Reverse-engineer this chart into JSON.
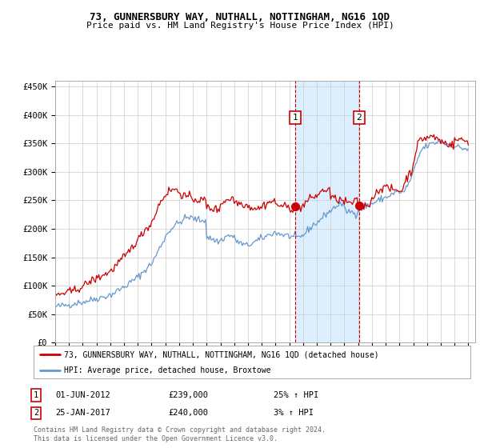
{
  "title": "73, GUNNERSBURY WAY, NUTHALL, NOTTINGHAM, NG16 1QD",
  "subtitle": "Price paid vs. HM Land Registry's House Price Index (HPI)",
  "ylim": [
    0,
    460000
  ],
  "yticks": [
    0,
    50000,
    100000,
    150000,
    200000,
    250000,
    300000,
    350000,
    400000,
    450000
  ],
  "xlim_start": 1995.0,
  "xlim_end": 2025.5,
  "sale1_date": 2012.42,
  "sale1_price": 239000,
  "sale2_date": 2017.07,
  "sale2_price": 240000,
  "legend_line1": "73, GUNNERSBURY WAY, NUTHALL, NOTTINGHAM, NG16 1QD (detached house)",
  "legend_line2": "HPI: Average price, detached house, Broxtowe",
  "footer": "Contains HM Land Registry data © Crown copyright and database right 2024.\nThis data is licensed under the Open Government Licence v3.0.",
  "red_color": "#cc0000",
  "blue_color": "#6699cc",
  "shade_color": "#ddeeff",
  "grid_color": "#cccccc",
  "background_color": "#ffffff",
  "hpi_years": [
    1995.0,
    1995.08,
    1995.17,
    1995.25,
    1995.33,
    1995.42,
    1995.5,
    1995.58,
    1995.67,
    1995.75,
    1995.83,
    1995.92,
    1996.0,
    1996.08,
    1996.17,
    1996.25,
    1996.33,
    1996.42,
    1996.5,
    1996.58,
    1996.67,
    1996.75,
    1996.83,
    1996.92,
    1997.0,
    1997.08,
    1997.17,
    1997.25,
    1997.33,
    1997.42,
    1997.5,
    1997.58,
    1997.67,
    1997.75,
    1997.83,
    1997.92,
    1998.0,
    1998.08,
    1998.17,
    1998.25,
    1998.33,
    1998.42,
    1998.5,
    1998.58,
    1998.67,
    1998.75,
    1998.83,
    1998.92,
    1999.0,
    1999.08,
    1999.17,
    1999.25,
    1999.33,
    1999.42,
    1999.5,
    1999.58,
    1999.67,
    1999.75,
    1999.83,
    1999.92,
    2000.0,
    2000.08,
    2000.17,
    2000.25,
    2000.33,
    2000.42,
    2000.5,
    2000.58,
    2000.67,
    2000.75,
    2000.83,
    2000.92,
    2001.0,
    2001.08,
    2001.17,
    2001.25,
    2001.33,
    2001.42,
    2001.5,
    2001.58,
    2001.67,
    2001.75,
    2001.83,
    2001.92,
    2002.0,
    2002.08,
    2002.17,
    2002.25,
    2002.33,
    2002.42,
    2002.5,
    2002.58,
    2002.67,
    2002.75,
    2002.83,
    2002.92,
    2003.0,
    2003.08,
    2003.17,
    2003.25,
    2003.33,
    2003.42,
    2003.5,
    2003.58,
    2003.67,
    2003.75,
    2003.83,
    2003.92,
    2004.0,
    2004.08,
    2004.17,
    2004.25,
    2004.33,
    2004.42,
    2004.5,
    2004.58,
    2004.67,
    2004.75,
    2004.83,
    2004.92,
    2005.0,
    2005.08,
    2005.17,
    2005.25,
    2005.33,
    2005.42,
    2005.5,
    2005.58,
    2005.67,
    2005.75,
    2005.83,
    2005.92,
    2006.0,
    2006.08,
    2006.17,
    2006.25,
    2006.33,
    2006.42,
    2006.5,
    2006.58,
    2006.67,
    2006.75,
    2006.83,
    2006.92,
    2007.0,
    2007.08,
    2007.17,
    2007.25,
    2007.33,
    2007.42,
    2007.5,
    2007.58,
    2007.67,
    2007.75,
    2007.83,
    2007.92,
    2008.0,
    2008.08,
    2008.17,
    2008.25,
    2008.33,
    2008.42,
    2008.5,
    2008.58,
    2008.67,
    2008.75,
    2008.83,
    2008.92,
    2009.0,
    2009.08,
    2009.17,
    2009.25,
    2009.33,
    2009.42,
    2009.5,
    2009.58,
    2009.67,
    2009.75,
    2009.83,
    2009.92,
    2010.0,
    2010.08,
    2010.17,
    2010.25,
    2010.33,
    2010.42,
    2010.5,
    2010.58,
    2010.67,
    2010.75,
    2010.83,
    2010.92,
    2011.0,
    2011.08,
    2011.17,
    2011.25,
    2011.33,
    2011.42,
    2011.5,
    2011.58,
    2011.67,
    2011.75,
    2011.83,
    2011.92,
    2012.0,
    2012.08,
    2012.17,
    2012.25,
    2012.33,
    2012.42,
    2012.5,
    2012.58,
    2012.67,
    2012.75,
    2012.83,
    2012.92,
    2013.0,
    2013.08,
    2013.17,
    2013.25,
    2013.33,
    2013.42,
    2013.5,
    2013.58,
    2013.67,
    2013.75,
    2013.83,
    2013.92,
    2014.0,
    2014.08,
    2014.17,
    2014.25,
    2014.33,
    2014.42,
    2014.5,
    2014.58,
    2014.67,
    2014.75,
    2014.83,
    2014.92,
    2015.0,
    2015.08,
    2015.17,
    2015.25,
    2015.33,
    2015.42,
    2015.5,
    2015.58,
    2015.67,
    2015.75,
    2015.83,
    2015.92,
    2016.0,
    2016.08,
    2016.17,
    2016.25,
    2016.33,
    2016.42,
    2016.5,
    2016.58,
    2016.67,
    2016.75,
    2016.83,
    2016.92,
    2017.0,
    2017.08,
    2017.17,
    2017.25,
    2017.33,
    2017.42,
    2017.5,
    2017.58,
    2017.67,
    2017.75,
    2017.83,
    2017.92,
    2018.0,
    2018.08,
    2018.17,
    2018.25,
    2018.33,
    2018.42,
    2018.5,
    2018.58,
    2018.67,
    2018.75,
    2018.83,
    2018.92,
    2019.0,
    2019.08,
    2019.17,
    2019.25,
    2019.33,
    2019.42,
    2019.5,
    2019.58,
    2019.67,
    2019.75,
    2019.83,
    2019.92,
    2020.0,
    2020.08,
    2020.17,
    2020.25,
    2020.33,
    2020.42,
    2020.5,
    2020.58,
    2020.67,
    2020.75,
    2020.83,
    2020.92,
    2021.0,
    2021.08,
    2021.17,
    2021.25,
    2021.33,
    2021.42,
    2021.5,
    2021.58,
    2021.67,
    2021.75,
    2021.83,
    2021.92,
    2022.0,
    2022.08,
    2022.17,
    2022.25,
    2022.33,
    2022.42,
    2022.5,
    2022.58,
    2022.67,
    2022.75,
    2022.83,
    2022.92,
    2023.0,
    2023.08,
    2023.17,
    2023.25,
    2023.33,
    2023.42,
    2023.5,
    2023.58,
    2023.67,
    2023.75,
    2023.83,
    2023.92,
    2024.0,
    2024.08,
    2024.17,
    2024.25,
    2024.33,
    2024.42,
    2024.5,
    2024.58,
    2024.67,
    2024.75,
    2024.83,
    2024.92,
    2025.0
  ],
  "hpi_vals": [
    63000,
    63500,
    64000,
    64200,
    64500,
    64800,
    65000,
    65300,
    65600,
    65800,
    66000,
    66200,
    66500,
    67000,
    67500,
    68000,
    68500,
    69000,
    69500,
    70000,
    70200,
    70500,
    70800,
    71000,
    71500,
    72000,
    72500,
    73000,
    73500,
    74000,
    74500,
    75000,
    75500,
    76000,
    76500,
    77000,
    77500,
    78000,
    78500,
    79000,
    79500,
    80000,
    80500,
    81000,
    81500,
    82000,
    82500,
    83000,
    84000,
    85000,
    86000,
    87000,
    88000,
    89500,
    91000,
    92500,
    93500,
    94500,
    95500,
    96500,
    97500,
    99000,
    100500,
    102000,
    103500,
    105000,
    106500,
    108000,
    109500,
    111000,
    112500,
    114000,
    115000,
    117000,
    119000,
    121000,
    123000,
    125000,
    127000,
    129000,
    131000,
    133000,
    135000,
    137000,
    139000,
    142000,
    146000,
    150000,
    154000,
    158000,
    162000,
    166000,
    170000,
    174000,
    178000,
    182000,
    186000,
    189000,
    192000,
    195000,
    198000,
    200000,
    202000,
    204000,
    206000,
    208000,
    208500,
    209000,
    210000,
    212000,
    214000,
    215000,
    216000,
    218000,
    219000,
    219500,
    219800,
    220000,
    219500,
    219000,
    218000,
    217500,
    217000,
    216500,
    216000,
    215500,
    215000,
    214500,
    214800,
    215000,
    215500,
    216000,
    186000,
    185000,
    184000,
    183000,
    182500,
    182000,
    181000,
    180000,
    179000,
    178500,
    178000,
    177500,
    180000,
    181000,
    182000,
    183500,
    185000,
    186000,
    187000,
    188500,
    188000,
    187500,
    187000,
    186500,
    183000,
    181000,
    179500,
    178000,
    176500,
    175000,
    174000,
    173000,
    172000,
    171500,
    171000,
    170500,
    171000,
    172000,
    173000,
    174000,
    175000,
    176000,
    177000,
    178000,
    179000,
    180000,
    181000,
    182000,
    183000,
    184000,
    185000,
    186000,
    187000,
    188000,
    189000,
    190000,
    191000,
    192000,
    192500,
    193000,
    193000,
    192500,
    192000,
    191500,
    191000,
    190500,
    190000,
    189500,
    189000,
    188500,
    188000,
    187500,
    187000,
    186500,
    186000,
    185500,
    185000,
    184500,
    184000,
    183500,
    184000,
    185000,
    186000,
    187000,
    189000,
    191000,
    193000,
    195000,
    197000,
    199000,
    201000,
    203000,
    205000,
    207000,
    208000,
    209000,
    210000,
    212000,
    214000,
    216000,
    218000,
    220000,
    222000,
    224000,
    226000,
    228000,
    229000,
    230000,
    231000,
    233000,
    235000,
    237000,
    239000,
    240000,
    241000,
    242000,
    242500,
    243000,
    243500,
    244000,
    233000,
    232000,
    231500,
    231000,
    230500,
    230000,
    229500,
    229000,
    228500,
    228000,
    227500,
    227000,
    233000,
    234000,
    235000,
    236000,
    237000,
    238000,
    239000,
    240000,
    241000,
    242000,
    242500,
    243000,
    244000,
    245000,
    246000,
    247000,
    248000,
    249000,
    250000,
    251000,
    252000,
    253000,
    253500,
    254000,
    255000,
    256000,
    257000,
    258000,
    259000,
    260000,
    261000,
    262000,
    263000,
    264000,
    264500,
    265000,
    265000,
    264000,
    263500,
    263000,
    265000,
    268000,
    272000,
    276000,
    280000,
    284000,
    288000,
    292000,
    298000,
    304000,
    310000,
    316000,
    322000,
    328000,
    333000,
    337000,
    340000,
    342000,
    343000,
    344000,
    345000,
    346000,
    347000,
    348000,
    349000,
    350000,
    350500,
    351000,
    351500,
    352000,
    352500,
    353000,
    352000,
    351000,
    350500,
    350000,
    349500,
    349000,
    348500,
    348000,
    347500,
    347000,
    346500,
    346000,
    345000,
    344500,
    344000,
    343500,
    343000,
    342500,
    342000,
    341500,
    341000,
    340500,
    340000,
    339500,
    339000
  ],
  "prop_years": [
    1995.0,
    1995.08,
    1995.17,
    1995.25,
    1995.33,
    1995.42,
    1995.5,
    1995.58,
    1995.67,
    1995.75,
    1995.83,
    1995.92,
    1996.0,
    1996.08,
    1996.17,
    1996.25,
    1996.33,
    1996.42,
    1996.5,
    1996.58,
    1996.67,
    1996.75,
    1996.83,
    1996.92,
    1997.0,
    1997.08,
    1997.17,
    1997.25,
    1997.33,
    1997.42,
    1997.5,
    1997.58,
    1997.67,
    1997.75,
    1997.83,
    1997.92,
    1998.0,
    1998.08,
    1998.17,
    1998.25,
    1998.33,
    1998.42,
    1998.5,
    1998.58,
    1998.67,
    1998.75,
    1998.83,
    1998.92,
    1999.0,
    1999.08,
    1999.17,
    1999.25,
    1999.33,
    1999.42,
    1999.5,
    1999.58,
    1999.67,
    1999.75,
    1999.83,
    1999.92,
    2000.0,
    2000.08,
    2000.17,
    2000.25,
    2000.33,
    2000.42,
    2000.5,
    2000.58,
    2000.67,
    2000.75,
    2000.83,
    2000.92,
    2001.0,
    2001.08,
    2001.17,
    2001.25,
    2001.33,
    2001.42,
    2001.5,
    2001.58,
    2001.67,
    2001.75,
    2001.83,
    2001.92,
    2002.0,
    2002.08,
    2002.17,
    2002.25,
    2002.33,
    2002.42,
    2002.5,
    2002.58,
    2002.67,
    2002.75,
    2002.83,
    2002.92,
    2003.0,
    2003.08,
    2003.17,
    2003.25,
    2003.33,
    2003.42,
    2003.5,
    2003.58,
    2003.67,
    2003.75,
    2003.83,
    2003.92,
    2004.0,
    2004.08,
    2004.17,
    2004.25,
    2004.33,
    2004.42,
    2004.5,
    2004.58,
    2004.67,
    2004.75,
    2004.83,
    2004.92,
    2005.0,
    2005.08,
    2005.17,
    2005.25,
    2005.33,
    2005.42,
    2005.5,
    2005.58,
    2005.67,
    2005.75,
    2005.83,
    2005.92,
    2006.0,
    2006.08,
    2006.17,
    2006.25,
    2006.33,
    2006.42,
    2006.5,
    2006.58,
    2006.67,
    2006.75,
    2006.83,
    2006.92,
    2007.0,
    2007.08,
    2007.17,
    2007.25,
    2007.33,
    2007.42,
    2007.5,
    2007.58,
    2007.67,
    2007.75,
    2007.83,
    2007.92,
    2008.0,
    2008.08,
    2008.17,
    2008.25,
    2008.33,
    2008.42,
    2008.5,
    2008.58,
    2008.67,
    2008.75,
    2008.83,
    2008.92,
    2009.0,
    2009.08,
    2009.17,
    2009.25,
    2009.33,
    2009.42,
    2009.5,
    2009.58,
    2009.67,
    2009.75,
    2009.83,
    2009.92,
    2010.0,
    2010.08,
    2010.17,
    2010.25,
    2010.33,
    2010.42,
    2010.5,
    2010.58,
    2010.67,
    2010.75,
    2010.83,
    2010.92,
    2011.0,
    2011.08,
    2011.17,
    2011.25,
    2011.33,
    2011.42,
    2011.5,
    2011.58,
    2011.67,
    2011.75,
    2011.83,
    2011.92,
    2012.0,
    2012.08,
    2012.17,
    2012.25,
    2012.33,
    2012.42,
    2012.5,
    2012.58,
    2012.67,
    2012.75,
    2012.83,
    2012.92,
    2013.0,
    2013.08,
    2013.17,
    2013.25,
    2013.33,
    2013.42,
    2013.5,
    2013.58,
    2013.67,
    2013.75,
    2013.83,
    2013.92,
    2014.0,
    2014.08,
    2014.17,
    2014.25,
    2014.33,
    2014.42,
    2014.5,
    2014.58,
    2014.67,
    2014.75,
    2014.83,
    2014.92,
    2015.0,
    2015.08,
    2015.17,
    2015.25,
    2015.33,
    2015.42,
    2015.5,
    2015.58,
    2015.67,
    2015.75,
    2015.83,
    2015.92,
    2016.0,
    2016.08,
    2016.17,
    2016.25,
    2016.33,
    2016.42,
    2016.5,
    2016.58,
    2016.67,
    2016.75,
    2016.83,
    2016.92,
    2017.0,
    2017.08,
    2017.17,
    2017.25,
    2017.33,
    2017.42,
    2017.5,
    2017.58,
    2017.67,
    2017.75,
    2017.83,
    2017.92,
    2018.0,
    2018.08,
    2018.17,
    2018.25,
    2018.33,
    2018.42,
    2018.5,
    2018.58,
    2018.67,
    2018.75,
    2018.83,
    2018.92,
    2019.0,
    2019.08,
    2019.17,
    2019.25,
    2019.33,
    2019.42,
    2019.5,
    2019.58,
    2019.67,
    2019.75,
    2019.83,
    2019.92,
    2020.0,
    2020.08,
    2020.17,
    2020.25,
    2020.33,
    2020.42,
    2020.5,
    2020.58,
    2020.67,
    2020.75,
    2020.83,
    2020.92,
    2021.0,
    2021.08,
    2021.17,
    2021.25,
    2021.33,
    2021.42,
    2021.5,
    2021.58,
    2021.67,
    2021.75,
    2021.83,
    2021.92,
    2022.0,
    2022.08,
    2022.17,
    2022.25,
    2022.33,
    2022.42,
    2022.5,
    2022.58,
    2022.67,
    2022.75,
    2022.83,
    2022.92,
    2023.0,
    2023.08,
    2023.17,
    2023.25,
    2023.33,
    2023.42,
    2023.5,
    2023.58,
    2023.67,
    2023.75,
    2023.83,
    2023.92,
    2024.0,
    2024.08,
    2024.17,
    2024.25,
    2024.33,
    2024.42,
    2024.5,
    2024.58,
    2024.67,
    2024.75,
    2024.83,
    2024.92,
    2025.0
  ],
  "prop_vals": [
    83000,
    83500,
    84000,
    84500,
    85000,
    85500,
    86000,
    86500,
    87000,
    87500,
    88000,
    88500,
    89000,
    89500,
    90000,
    90500,
    91000,
    92000,
    93000,
    94000,
    95000,
    96000,
    97000,
    98000,
    99000,
    100000,
    101500,
    103000,
    104500,
    106000,
    107000,
    108000,
    109000,
    110000,
    111000,
    112000,
    113000,
    114000,
    115000,
    116000,
    117000,
    118000,
    119000,
    120000,
    121000,
    122000,
    123000,
    124000,
    125000,
    127000,
    129000,
    131000,
    133000,
    135500,
    138000,
    140000,
    142000,
    144000,
    146000,
    148000,
    150000,
    152000,
    154000,
    156000,
    159000,
    162000,
    165000,
    168000,
    171000,
    174000,
    176000,
    178000,
    180000,
    183000,
    186000,
    189000,
    192000,
    195000,
    198000,
    200000,
    202000,
    204000,
    206000,
    208000,
    210000,
    215000,
    220000,
    225000,
    230000,
    235000,
    240000,
    245000,
    248000,
    251000,
    254000,
    257000,
    260000,
    262000,
    264000,
    266000,
    267000,
    268000,
    269000,
    270000,
    269000,
    268000,
    267000,
    266000,
    265000,
    263000,
    261000,
    259000,
    258000,
    257000,
    256500,
    256000,
    255500,
    255000,
    254500,
    254000,
    253000,
    252500,
    252000,
    251500,
    251000,
    250500,
    250000,
    249500,
    249800,
    250200,
    250500,
    251000,
    238000,
    237000,
    236500,
    236000,
    235800,
    235500,
    235000,
    234500,
    234000,
    233500,
    233000,
    232500,
    245000,
    246000,
    247000,
    248000,
    249000,
    250000,
    251000,
    252000,
    252500,
    253000,
    253500,
    254000,
    248000,
    247000,
    246500,
    246000,
    245500,
    245000,
    244500,
    244000,
    243500,
    243000,
    242500,
    242000,
    240000,
    239000,
    238500,
    238000,
    237500,
    237000,
    236800,
    236500,
    236200,
    236000,
    235800,
    235500,
    240000,
    241000,
    242000,
    243000,
    244000,
    245000,
    246000,
    247000,
    247500,
    248000,
    248500,
    249000,
    243000,
    242500,
    242000,
    241500,
    241000,
    240500,
    240000,
    239500,
    239000,
    238500,
    238000,
    237500,
    237000,
    236500,
    236000,
    235500,
    235200,
    235000,
    235300,
    235600,
    236000,
    237000,
    238000,
    239000,
    241000,
    243000,
    245000,
    247000,
    249000,
    251000,
    252500,
    254000,
    255000,
    256000,
    256500,
    257000,
    258000,
    260000,
    262000,
    264000,
    265000,
    266000,
    267000,
    268000,
    268500,
    269000,
    269500,
    270000,
    255000,
    254000,
    253500,
    253000,
    252500,
    252000,
    251500,
    251000,
    250500,
    250000,
    249500,
    249000,
    247000,
    246500,
    246000,
    245500,
    245200,
    245000,
    245300,
    245600,
    246000,
    247000,
    248000,
    249000,
    242000,
    241500,
    241000,
    240500,
    240200,
    240000,
    240500,
    241000,
    242000,
    243000,
    244000,
    245000,
    255000,
    257000,
    259000,
    261000,
    263000,
    265000,
    267000,
    269000,
    271000,
    273000,
    275000,
    277000,
    272000,
    271000,
    270500,
    270000,
    269500,
    269000,
    268700,
    268400,
    268200,
    268000,
    267800,
    267600,
    267000,
    266000,
    268000,
    272000,
    278000,
    283000,
    288000,
    292000,
    295000,
    298000,
    300000,
    302000,
    315000,
    325000,
    335000,
    342000,
    348000,
    352000,
    355000,
    357000,
    358000,
    358500,
    359000,
    359500,
    360000,
    360500,
    361000,
    361500,
    362000,
    362500,
    361000,
    360000,
    359000,
    358000,
    357000,
    356000,
    354000,
    353000,
    352000,
    351000,
    350500,
    350000,
    349500,
    349000,
    348500,
    348000,
    347500,
    347000,
    354000,
    355000,
    356000,
    356500,
    357000,
    357500,
    356000,
    355500,
    355000,
    354500,
    354000,
    353500,
    353000
  ]
}
